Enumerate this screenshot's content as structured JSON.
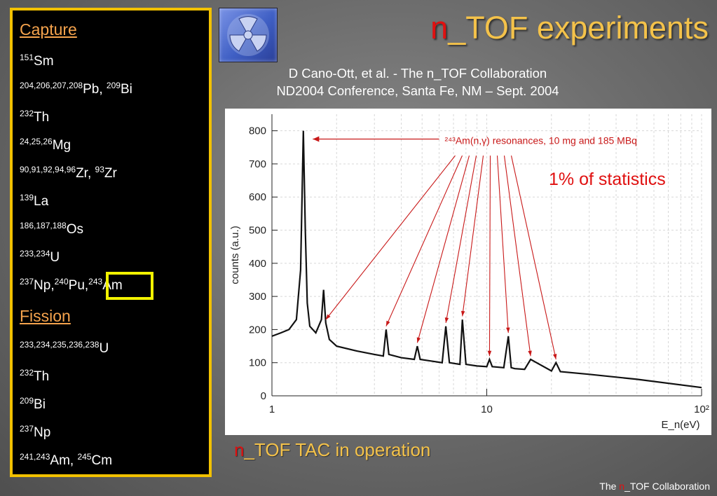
{
  "title_prefix": "n",
  "title_rest": "_TOF experiments",
  "reference": {
    "line1": "D Cano-Ott, et al. - The n_TOF Collaboration",
    "line2": "ND2004 Conference, Santa Fe, NM – Sept. 2004"
  },
  "capture": {
    "heading": "Capture",
    "items": [
      {
        "parts": [
          {
            "sup": "151",
            "txt": "Sm"
          }
        ]
      },
      {
        "parts": [
          {
            "sup": "204,206,207,208",
            "txt": "Pb, "
          },
          {
            "sup": "209",
            "txt": "Bi"
          }
        ]
      },
      {
        "parts": [
          {
            "sup": "232",
            "txt": "Th"
          }
        ]
      },
      {
        "parts": [
          {
            "sup": "24,25,26",
            "txt": "Mg"
          }
        ]
      },
      {
        "parts": [
          {
            "sup": "90,91,92,94,96",
            "txt": "Zr, "
          },
          {
            "sup": "93",
            "txt": "Zr"
          }
        ]
      },
      {
        "parts": [
          {
            "sup": "139",
            "txt": "La"
          }
        ]
      },
      {
        "parts": [
          {
            "sup": "186,187,188",
            "txt": "Os"
          }
        ]
      },
      {
        "parts": [
          {
            "sup": "233,234",
            "txt": "U"
          }
        ]
      },
      {
        "parts": [
          {
            "sup": "237",
            "txt": "Np,"
          },
          {
            "sup": "240",
            "txt": "Pu,"
          },
          {
            "sup": "243",
            "txt": "Am"
          }
        ]
      }
    ]
  },
  "fission": {
    "heading": "Fission",
    "items": [
      {
        "parts": [
          {
            "sup": "233,234,235,236,238",
            "txt": "U"
          }
        ]
      },
      {
        "parts": [
          {
            "sup": "232",
            "txt": "Th"
          }
        ]
      },
      {
        "parts": [
          {
            "sup": "209",
            "txt": "Bi"
          }
        ]
      },
      {
        "parts": [
          {
            "sup": "237",
            "txt": "Np"
          }
        ]
      },
      {
        "parts": [
          {
            "sup": "241,243",
            "txt": "Am, "
          },
          {
            "sup": "245",
            "txt": "Cm"
          }
        ]
      }
    ]
  },
  "statistics_note": "1% of statistics",
  "caption_prefix": "n",
  "caption_rest": "_TOF TAC in operation",
  "footer": {
    "pre": "The ",
    "n": "n",
    "post": "_TOF Collaboration"
  },
  "colors": {
    "accent_gold": "#f4c24a",
    "accent_red": "#e01010",
    "panel_border": "#f2c100",
    "highlight": "#f2f200"
  },
  "icons": {
    "logo": "radiation-trefoil-icon"
  },
  "chart_data": {
    "type": "line",
    "ylabel": "counts (a.u.)",
    "xlabel": "E_n(eV)",
    "x_scale": "log",
    "xlim": [
      1,
      100
    ],
    "ylim": [
      0,
      850
    ],
    "x_ticks": [
      "1",
      "10",
      "10²"
    ],
    "y_ticks": [
      0,
      100,
      200,
      300,
      400,
      500,
      600,
      700,
      800
    ],
    "grid": true,
    "annotation": "²⁴³Am(n,γ) resonances, 10 mg and 185 MBq",
    "series": [
      {
        "x": [
          1.0,
          1.1,
          1.2,
          1.3,
          1.36,
          1.4,
          1.43,
          1.46,
          1.5,
          1.6,
          1.7,
          1.74,
          1.78,
          1.85,
          2.0,
          2.5,
          3.0,
          3.3,
          3.4,
          3.5,
          4.0,
          4.6,
          4.75,
          4.9,
          5.5,
          6.2,
          6.45,
          6.7,
          7.5,
          7.7,
          8.0,
          9.0,
          10.0,
          10.3,
          10.6,
          12.0,
          12.6,
          13.0,
          13.5,
          15.0,
          16.0,
          20.0,
          21.0,
          22.0,
          30.0,
          50.0,
          100.0
        ],
        "y": [
          180,
          190,
          200,
          230,
          380,
          800,
          500,
          280,
          210,
          190,
          230,
          320,
          220,
          170,
          150,
          135,
          125,
          120,
          200,
          125,
          115,
          110,
          150,
          110,
          105,
          100,
          210,
          100,
          95,
          230,
          95,
          90,
          88,
          110,
          88,
          85,
          180,
          85,
          82,
          80,
          110,
          75,
          100,
          73,
          65,
          50,
          25
        ]
      }
    ],
    "resonance_markers": [
      1.78,
      3.4,
      4.75,
      6.45,
      7.7,
      10.3,
      12.6,
      16.0,
      21.0
    ]
  }
}
